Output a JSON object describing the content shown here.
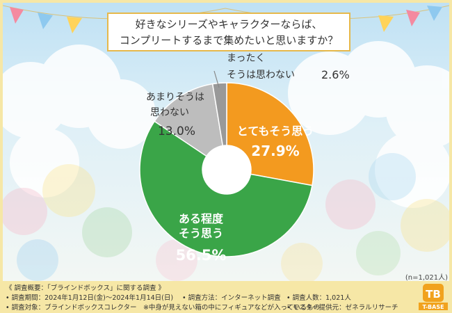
{
  "title": {
    "line1": "好きなシリーズやキャラクターならば、",
    "line2": "コンプリートするまで集めたいと思いますか？"
  },
  "sample_size": "(n=1,021人)",
  "chart_data": {
    "type": "pie",
    "donut": true,
    "title": "好きなシリーズやキャラクターならば、コンプリートするまで集めたいと思いますか？",
    "slices": [
      {
        "label": "とてもそう思う",
        "value": 27.9,
        "display": "27.9%",
        "color": "#f39a1f"
      },
      {
        "label": "ある程度そう思う",
        "value": 56.5,
        "display": "56.5%",
        "color": "#3aa548"
      },
      {
        "label": "あまりそうは思わない",
        "value": 13.0,
        "display": "13.0%",
        "color": "#bdbdbd"
      },
      {
        "label": "まったくそうは思わない",
        "value": 2.6,
        "display": "2.6%",
        "color": "#999999"
      }
    ]
  },
  "slice_labels": {
    "s0_line1": "とてもそう思う",
    "s0_value": "27.9%",
    "s1_line1": "ある程度",
    "s1_line2": "そう思う",
    "s1_value": "56.5%",
    "s2_line1": "あまりそうは",
    "s2_line2": "思わない",
    "s2_value": "13.0%",
    "s3_line1": "まったく",
    "s3_line2": "そうは思わない",
    "s3_value": "2.6%"
  },
  "footer": {
    "overview": "《 調査概要：「ブラインドボックス」に関する調査 》",
    "period": "• 調査期間：2024年1月12日(金)〜2024年1月14日(日)",
    "method": "• 調査方法：インターネット調査",
    "count": "• 調査人数：1,021人",
    "target": "• 調査対象：ブラインドボックスコレクター　※中身が見えない箱の中にフィギュアなどが入っているもの",
    "provider": "• モニター提供元：ゼネラルリサーチ"
  },
  "logo": {
    "text": "T-BASE",
    "mark": "TB"
  }
}
